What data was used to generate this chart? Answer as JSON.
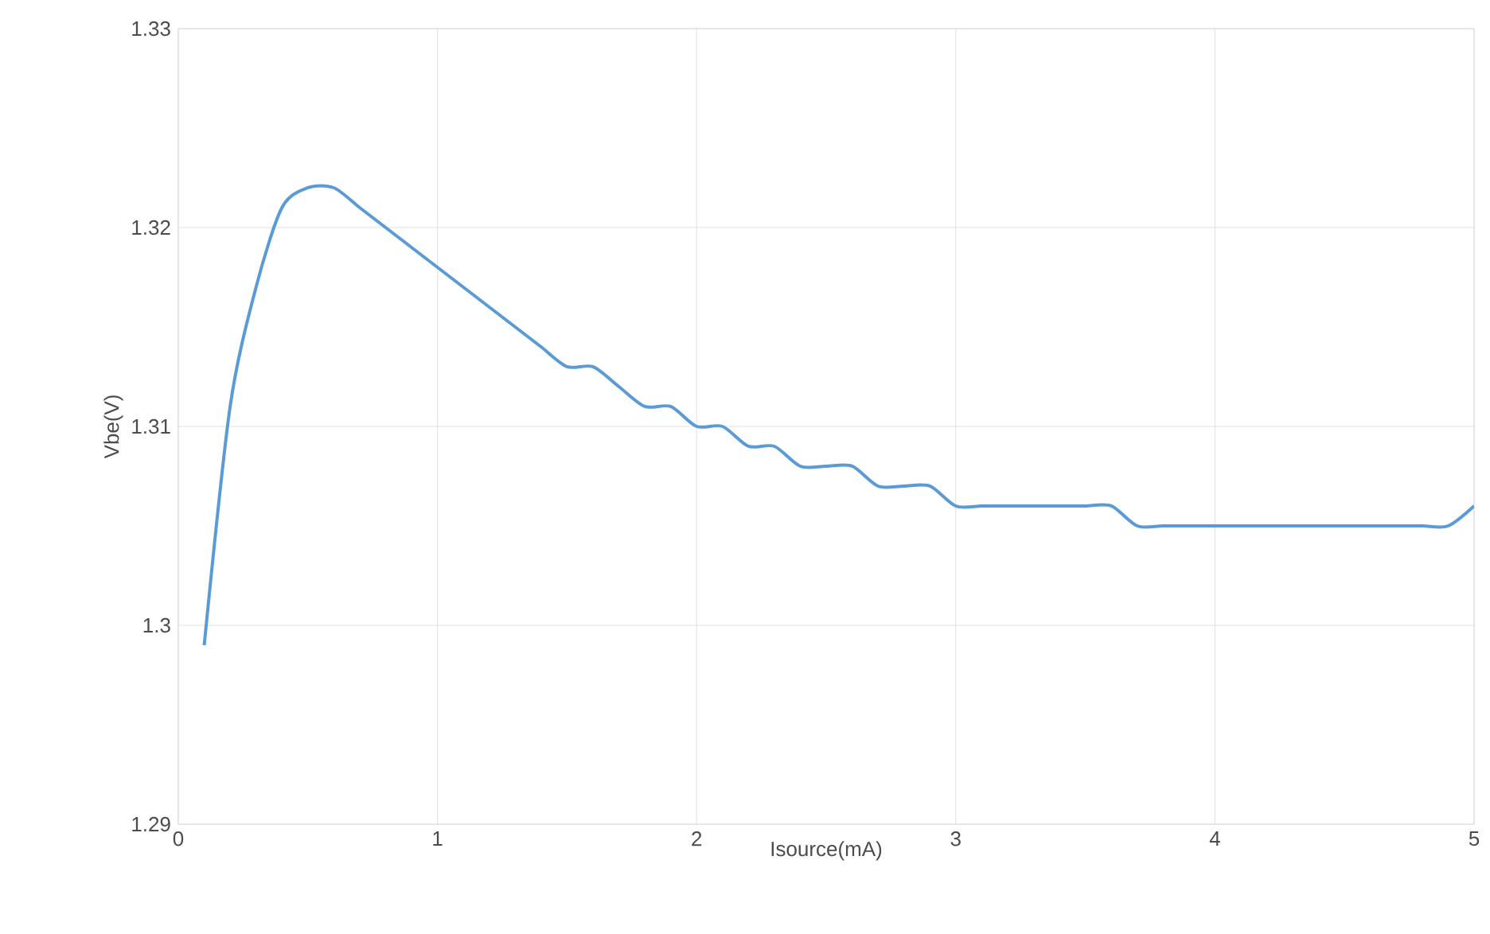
{
  "chart_data": {
    "type": "line",
    "xlabel": "Isource(mA)",
    "ylabel": "Vbe(V)",
    "x": [
      0.1,
      0.2,
      0.3,
      0.4,
      0.5,
      0.6,
      0.7,
      0.8,
      0.9,
      1.0,
      1.1,
      1.2,
      1.3,
      1.4,
      1.5,
      1.6,
      1.7,
      1.8,
      1.9,
      2.0,
      2.1,
      2.2,
      2.3,
      2.4,
      2.5,
      2.6,
      2.7,
      2.8,
      2.9,
      3.0,
      3.1,
      3.2,
      3.3,
      3.4,
      3.5,
      3.6,
      3.7,
      3.8,
      3.9,
      4.0,
      4.1,
      4.2,
      4.3,
      4.4,
      4.5,
      4.6,
      4.7,
      4.8,
      4.9,
      5.0
    ],
    "series": [
      {
        "color": "#5b9bd5",
        "values": [
          1.299,
          1.311,
          1.317,
          1.321,
          1.322,
          1.322,
          1.321,
          1.32,
          1.319,
          1.318,
          1.317,
          1.316,
          1.315,
          1.314,
          1.313,
          1.313,
          1.312,
          1.311,
          1.311,
          1.31,
          1.31,
          1.309,
          1.309,
          1.308,
          1.308,
          1.308,
          1.307,
          1.307,
          1.307,
          1.306,
          1.306,
          1.306,
          1.306,
          1.306,
          1.306,
          1.306,
          1.305,
          1.305,
          1.305,
          1.305,
          1.305,
          1.305,
          1.305,
          1.305,
          1.305,
          1.305,
          1.305,
          1.305,
          1.305,
          1.306
        ]
      }
    ],
    "xlim": [
      0,
      5
    ],
    "xticks": [
      0,
      1,
      2,
      3,
      4,
      5
    ],
    "ylim": [
      1.29,
      1.33
    ],
    "yticks": [
      1.29,
      1.3,
      1.31,
      1.32,
      1.33
    ],
    "grid": true,
    "marker": "none",
    "line_style": "solid"
  }
}
